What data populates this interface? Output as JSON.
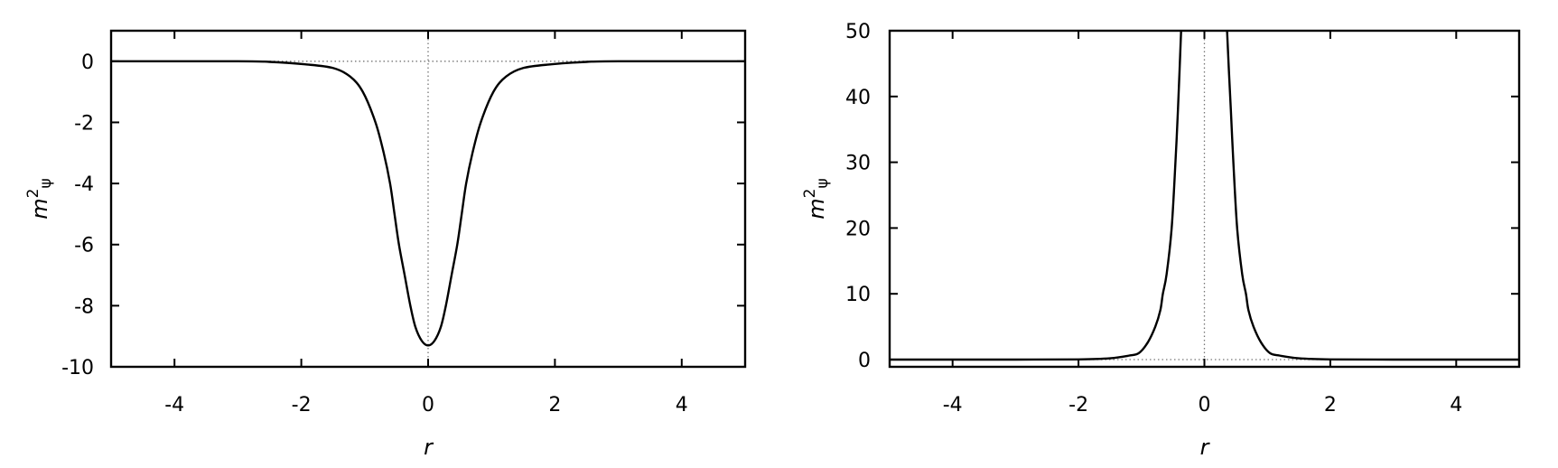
{
  "chart_data": [
    {
      "type": "line",
      "xlabel": "r",
      "ylabel": {
        "base": "m",
        "sup": "2",
        "sub": "ψ"
      },
      "xlim": [
        -5,
        5
      ],
      "ylim": [
        -10,
        1
      ],
      "xticks": [
        "-4",
        "-2",
        "0",
        "2",
        "4"
      ],
      "xtick_values": [
        -4,
        -2,
        0,
        2,
        4
      ],
      "yticks": [
        "0",
        "-2",
        "-4",
        "-6",
        "-8",
        "-10"
      ],
      "ytick_values": [
        0,
        -2,
        -4,
        -6,
        -8,
        -10
      ],
      "zero_axes": "dotted",
      "grid": false,
      "color": "#000000",
      "series": [
        {
          "x": [
            -5,
            -3,
            -2.5,
            -1.94,
            -1.5,
            -1.23,
            -1.03,
            -0.83,
            -0.7,
            -0.6,
            -0.53,
            -0.46,
            -0.37,
            -0.28,
            -0.2,
            -0.1,
            0,
            0.1,
            0.2,
            0.28,
            0.37,
            0.46,
            0.53,
            0.6,
            0.7,
            0.83,
            1.03,
            1.23,
            1.5,
            1.94,
            2.5,
            3,
            5
          ],
          "y": [
            0,
            0,
            -0.02,
            -0.1,
            -0.22,
            -0.5,
            -1,
            -2,
            -3,
            -4,
            -5,
            -6,
            -7,
            -8,
            -8.7,
            -9.15,
            -9.3,
            -9.15,
            -8.7,
            -8,
            -7,
            -6,
            -5,
            -4,
            -3,
            -2,
            -1,
            -0.5,
            -0.22,
            -0.1,
            -0.02,
            0,
            0
          ]
        }
      ]
    },
    {
      "type": "line",
      "xlabel": "r",
      "ylabel": {
        "base": "m",
        "sup": "2",
        "sub": "ψ"
      },
      "xlim": [
        -5,
        5
      ],
      "ylim": [
        -1.1,
        50
      ],
      "xticks": [
        "-4",
        "-2",
        "0",
        "2",
        "4"
      ],
      "xtick_values": [
        -4,
        -2,
        0,
        2,
        4
      ],
      "yticks": [
        "50",
        "40",
        "30",
        "20",
        "10",
        "0"
      ],
      "ytick_values": [
        50,
        40,
        30,
        20,
        10,
        0
      ],
      "zero_axes": "dotted",
      "grid": false,
      "color": "#000000",
      "series": [
        {
          "x": [
            -5,
            -3,
            -2,
            -1.5,
            -1.2,
            -1.04,
            -0.9,
            -0.78,
            -0.7,
            -0.66,
            -0.6,
            -0.52,
            -0.46,
            -0.42,
            -0.37,
            -0.34
          ],
          "y": [
            0,
            0,
            0.03,
            0.2,
            0.6,
            1,
            2.6,
            5,
            7.5,
            10,
            13,
            20,
            30,
            38,
            50,
            58
          ]
        },
        {
          "x": [
            0.34,
            0.36,
            0.42,
            0.46,
            0.52,
            0.6,
            0.66,
            0.7,
            0.78,
            0.9,
            1.04,
            1.2,
            1.5,
            2,
            3,
            5
          ],
          "y": [
            58,
            50,
            38,
            30,
            20,
            13,
            10,
            7.5,
            5,
            2.6,
            1,
            0.6,
            0.2,
            0.03,
            0,
            0
          ]
        }
      ]
    }
  ]
}
